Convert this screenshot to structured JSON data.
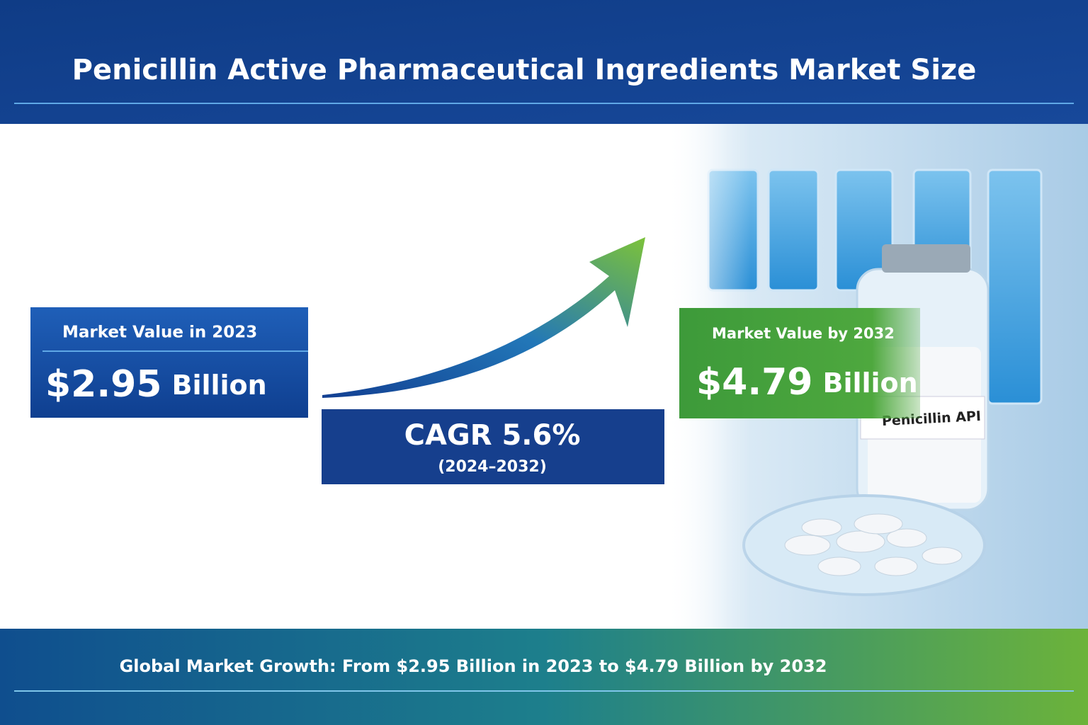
{
  "header": {
    "title": "Penicillin Active Pharmaceutical Ingredients Market Size"
  },
  "start_value": {
    "label": "Market Value in 2023",
    "amount": "$2.95",
    "unit": "Billion"
  },
  "growth": {
    "label": "CAGR 5.6%",
    "period": "(2024–2032)"
  },
  "end_value": {
    "label": "Market Value by 2032",
    "amount": "$4.79",
    "unit": "Billion"
  },
  "image": {
    "vial_label": "Penicillin API"
  },
  "footer": {
    "text": "Global Market Growth: From $2.95 Billion in 2023 to $4.79 Billion by 2032"
  }
}
